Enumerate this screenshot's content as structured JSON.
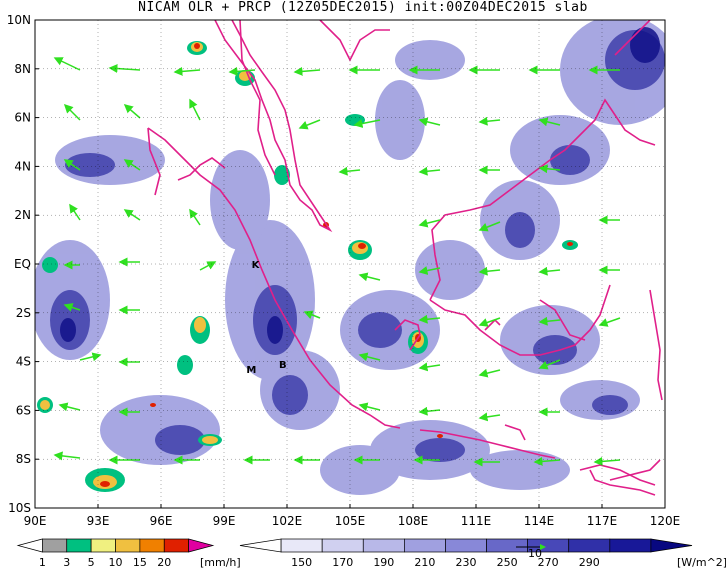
{
  "title": "NICAM OLR + PRCP (12Z05DEC2015) init:00Z04DEC2015 slab",
  "lat_labels": [
    "10N",
    "8N",
    "6N",
    "4N",
    "2N",
    "EQ",
    "2S",
    "4S",
    "6S",
    "8S",
    "10S"
  ],
  "lon_labels": [
    "90E",
    "93E",
    "96E",
    "99E",
    "102E",
    "105E",
    "108E",
    "111E",
    "114E",
    "117E",
    "120E"
  ],
  "markers": [
    {
      "label": "K",
      "lon": 100.5,
      "lat": 0.0
    },
    {
      "label": "M",
      "lon": 100.3,
      "lat": -4.3
    },
    {
      "label": "B",
      "lon": 101.8,
      "lat": -4.1
    }
  ],
  "prcp_colorbar": {
    "ticks": [
      "1",
      "3",
      "5",
      "10",
      "15",
      "20"
    ],
    "unit": "[mm/h]",
    "colors": [
      "#ffffff",
      "#a0a0a0",
      "#00c080",
      "#f0f080",
      "#f0c040",
      "#f08000",
      "#e02000",
      "#e000a0"
    ]
  },
  "olr_colorbar": {
    "ticks": [
      "150",
      "170",
      "190",
      "210",
      "230",
      "250",
      "270",
      "290"
    ],
    "unit": "[W/m^2]",
    "vector_ref": "10",
    "colors": [
      "#ffffff",
      "#e8e8f8",
      "#d0d0f0",
      "#b8b8e8",
      "#a0a0e0",
      "#8888d8",
      "#6868c8",
      "#4848b8",
      "#3030a8",
      "#181898",
      "#080880"
    ]
  },
  "colors": {
    "coastline": "#e0208a",
    "wind_vector": "#30e020",
    "cloud": "#6868c8",
    "grid": "#000000"
  }
}
